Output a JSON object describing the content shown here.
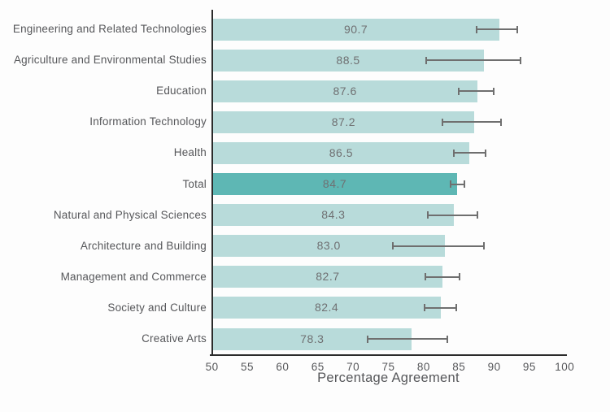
{
  "chart_data": {
    "type": "bar",
    "orientation": "horizontal",
    "title": "",
    "xlabel": "Percentage Agreement",
    "ylabel": "",
    "xlim": [
      50,
      100
    ],
    "xticks": [
      50,
      55,
      60,
      65,
      70,
      75,
      80,
      85,
      90,
      95,
      100
    ],
    "grid": false,
    "legend": false,
    "categories": [
      "Engineering and Related Technologies",
      "Agriculture and Environmental Studies",
      "Education",
      "Information Technology",
      "Health",
      "Total",
      "Natural and Physical Sciences",
      "Architecture and Building",
      "Management and Commerce",
      "Society and Culture",
      "Creative Arts"
    ],
    "values": [
      90.7,
      88.5,
      87.6,
      87.2,
      86.5,
      84.7,
      84.3,
      83.0,
      82.7,
      82.4,
      78.3
    ],
    "error_low": [
      87.4,
      80.2,
      84.9,
      82.6,
      84.2,
      83.7,
      80.5,
      75.5,
      80.1,
      80.0,
      72.0
    ],
    "error_high": [
      93.4,
      93.9,
      90.1,
      91.1,
      88.9,
      85.9,
      87.7,
      88.7,
      85.2,
      84.7,
      83.5
    ],
    "highlight_category": "Total",
    "colors": {
      "bar": "#b8dbda",
      "bar_highlight": "#5eb7b4",
      "error_bar": "#6f6f6f",
      "axis": "#2b2b2b",
      "category_text": "#56575a",
      "value_text": "#6f7072",
      "background": "#fdfdfd"
    }
  }
}
